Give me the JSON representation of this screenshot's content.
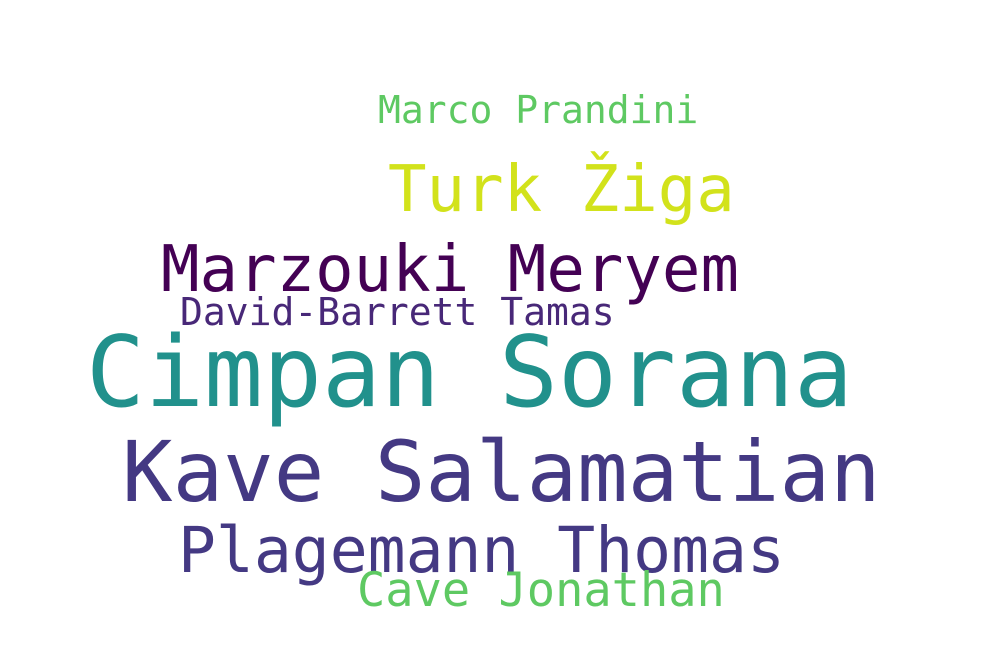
{
  "words": [
    {
      "text": "Cimpan Sorana",
      "color": "#21918c"
    },
    {
      "text": "Kave Salamatian",
      "color": "#443983"
    },
    {
      "text": "Plagemann Thomas",
      "color": "#443983"
    },
    {
      "text": "Marzouki Meryem",
      "color": "#440154"
    },
    {
      "text": "Turk Žiga",
      "color": "#d2e21b"
    },
    {
      "text": "David-Barrett Tamas",
      "color": "#482878"
    },
    {
      "text": "Marco Prandini",
      "color": "#5ec962"
    },
    {
      "text": "Cave Jonathan",
      "color": "#5ec962"
    }
  ]
}
